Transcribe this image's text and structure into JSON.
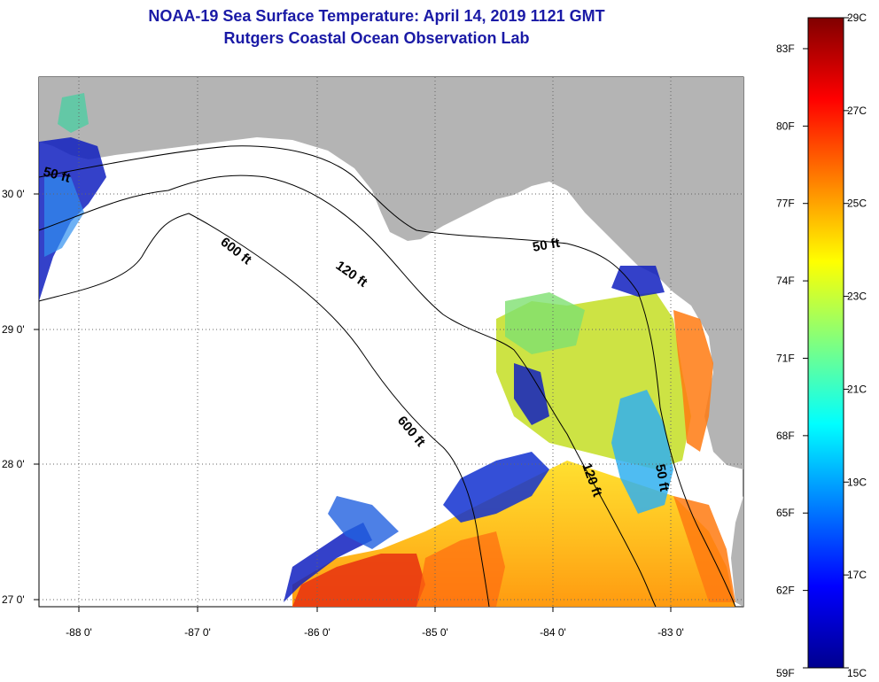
{
  "header": {
    "title": "NOAA-19 Sea Surface Temperature:  April 14, 2019 1121 GMT",
    "subtitle": "Rutgers Coastal Ocean Observation Lab"
  },
  "map": {
    "lon_ticks": [
      "-88 0'",
      "-87 0'",
      "-86 0'",
      "-85 0'",
      "-84 0'",
      "-83 0'"
    ],
    "lat_ticks": [
      "30 0'",
      "29 0'",
      "28 0'",
      "27 0'"
    ],
    "contour_labels": [
      "600 ft",
      "120 ft",
      "50 ft",
      "600 ft",
      "120 ft",
      "50 ft",
      "50 ft"
    ],
    "colors": {
      "land": "#b4b4b4",
      "ocean_nodata": "#ffffff"
    }
  },
  "colorbar": {
    "fahrenheit_labels": [
      "83F",
      "80F",
      "77F",
      "74F",
      "71F",
      "68F",
      "65F",
      "62F",
      "59F"
    ],
    "celsius_labels": [
      "29C",
      "27C",
      "25C",
      "23C",
      "21C",
      "19C",
      "17C",
      "15C"
    ],
    "range_c": [
      15,
      29
    ],
    "colormap": "jet"
  }
}
